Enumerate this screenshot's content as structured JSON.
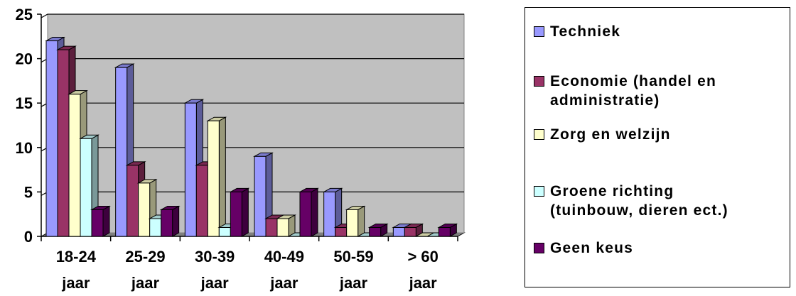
{
  "chart_data": {
    "type": "bar",
    "categories": [
      "18-24\njaar",
      "25-29\njaar",
      "30-39\njaar",
      "40-49\njaar",
      "50-59\njaar",
      "> 60\njaar"
    ],
    "series": [
      {
        "name": "Techniek",
        "color": "#9999ff",
        "values": [
          22,
          19,
          15,
          9,
          5,
          1
        ]
      },
      {
        "name": "Economie (handel en\nadministratie)",
        "color": "#993366",
        "values": [
          21,
          8,
          8,
          2,
          1,
          1
        ]
      },
      {
        "name": "Zorg en welzijn",
        "color": "#ffffcc",
        "values": [
          16,
          6,
          13,
          2,
          3,
          0
        ]
      },
      {
        "name": "Groene richting\n(tuinbouw, dieren ect.)",
        "color": "#ccffff",
        "values": [
          11,
          2,
          1,
          0,
          0,
          0
        ]
      },
      {
        "name": "Geen keus",
        "color": "#660066",
        "values": [
          3,
          3,
          5,
          5,
          1,
          1
        ]
      }
    ],
    "yticks": [
      "0",
      "5",
      "10",
      "15",
      "20",
      "25"
    ],
    "ylim": [
      0,
      25
    ],
    "grid": true,
    "legend_position": "right",
    "plot_background": "#c0c0c0"
  }
}
